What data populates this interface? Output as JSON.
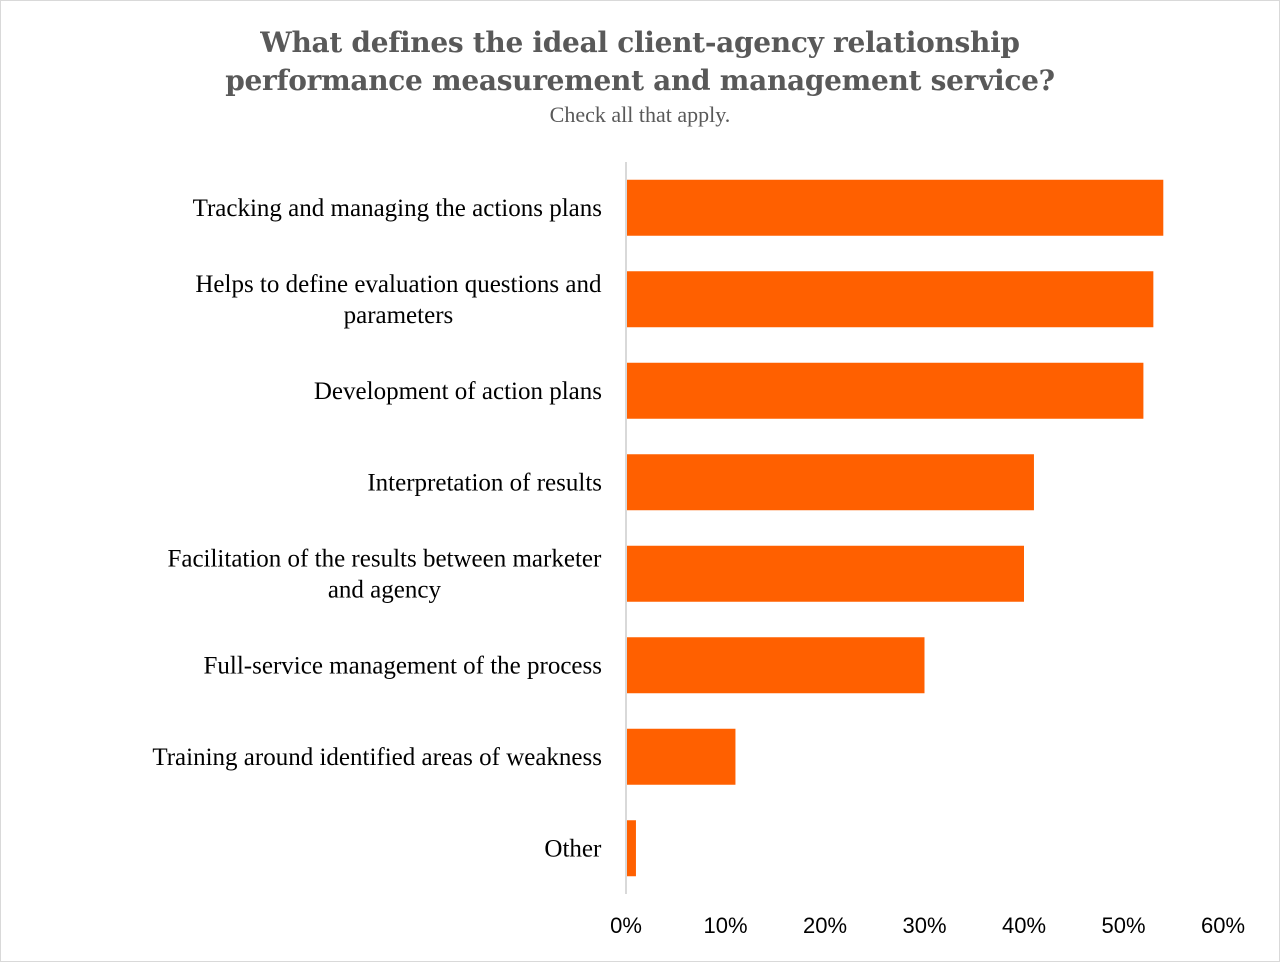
{
  "chart_data": {
    "type": "bar",
    "orientation": "horizontal",
    "title_line1": "What defines the ideal client-agency relationship",
    "title_line2": "performance measurement and management service?",
    "subtitle": "Check all that apply.",
    "categories": [
      [
        "Tracking and managing the actions plans"
      ],
      [
        "Helps to define evaluation questions and",
        "parameters"
      ],
      [
        "Development of action plans"
      ],
      [
        "Interpretation of results"
      ],
      [
        "Facilitation of the results between marketer",
        "and agency"
      ],
      [
        "Full-service management of the process"
      ],
      [
        "Training around identified areas of weakness"
      ],
      [
        "Other"
      ]
    ],
    "values": [
      54,
      53,
      52,
      41,
      40,
      30,
      11,
      1
    ],
    "xlim": [
      0,
      60
    ],
    "xticks": [
      "0%",
      "10%",
      "20%",
      "30%",
      "40%",
      "50%",
      "60%"
    ],
    "xtick_values": [
      0,
      10,
      20,
      30,
      40,
      50,
      60
    ],
    "bar_color": "#ff6000",
    "axis_color": "#d9d9d9",
    "grid": false,
    "legend": "none"
  }
}
